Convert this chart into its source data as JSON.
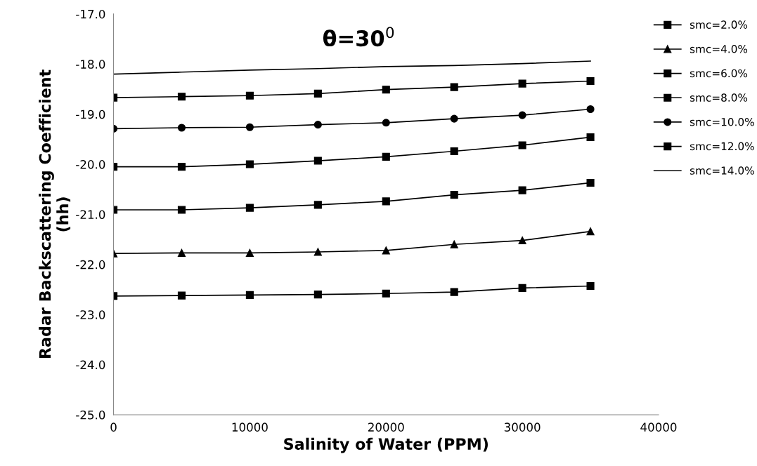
{
  "chart_data": {
    "type": "line",
    "title": "θ=30$^{0}$",
    "xlabel": "Salinity of Water (PPM)",
    "ylabel": "Radar Backscattering Coefficient\n(hh)",
    "x": [
      0,
      5000,
      10000,
      15000,
      20000,
      25000,
      30000,
      35000
    ],
    "xlim": [
      0,
      40000
    ],
    "xticks": [
      0,
      10000,
      20000,
      30000,
      40000
    ],
    "ylim": [
      -25,
      -17
    ],
    "yticks": [
      {
        "value": -25,
        "label": "-25.0"
      },
      {
        "value": -24,
        "label": "-24.0"
      },
      {
        "value": -23,
        "label": "-23.0"
      },
      {
        "value": -22,
        "label": "-22.0"
      },
      {
        "value": -21,
        "label": "-21.0"
      },
      {
        "value": -20,
        "label": "-20.0"
      },
      {
        "value": -19,
        "label": "-19.0"
      },
      {
        "value": -18,
        "label": "-18.0"
      },
      {
        "value": -17,
        "label": "-17.0"
      }
    ],
    "grid": false,
    "legend": "right",
    "line_style": "solid",
    "series": [
      {
        "name": "smc=2.0%",
        "color": "#000000",
        "marker": "square",
        "values": [
          -22.63,
          -22.62,
          -22.61,
          -22.6,
          -22.58,
          -22.55,
          -22.47,
          -22.43
        ]
      },
      {
        "name": "smc=4.0%",
        "color": "#000000",
        "marker": "triangle",
        "values": [
          -21.78,
          -21.77,
          -21.77,
          -21.75,
          -21.72,
          -21.6,
          -21.52,
          -21.34
        ]
      },
      {
        "name": "smc=6.0%",
        "color": "#000000",
        "marker": "square",
        "values": [
          -20.91,
          -20.91,
          -20.87,
          -20.81,
          -20.74,
          -20.61,
          -20.52,
          -20.37
        ]
      },
      {
        "name": "smc=8.0%",
        "color": "#000000",
        "marker": "square",
        "values": [
          -20.05,
          -20.05,
          -20.0,
          -19.93,
          -19.85,
          -19.74,
          -19.62,
          -19.46
        ]
      },
      {
        "name": "smc=10.0%",
        "color": "#000000",
        "marker": "circle",
        "values": [
          -19.29,
          -19.27,
          -19.26,
          -19.21,
          -19.17,
          -19.09,
          -19.02,
          -18.9
        ]
      },
      {
        "name": "smc=12.0%",
        "color": "#000000",
        "marker": "square",
        "values": [
          -18.67,
          -18.65,
          -18.63,
          -18.59,
          -18.51,
          -18.46,
          -18.39,
          -18.34
        ]
      },
      {
        "name": "smc=14.0%",
        "color": "#000000",
        "marker": "none",
        "values": [
          -18.2,
          -18.16,
          -18.12,
          -18.09,
          -18.05,
          -18.03,
          -17.99,
          -17.94
        ]
      }
    ]
  }
}
